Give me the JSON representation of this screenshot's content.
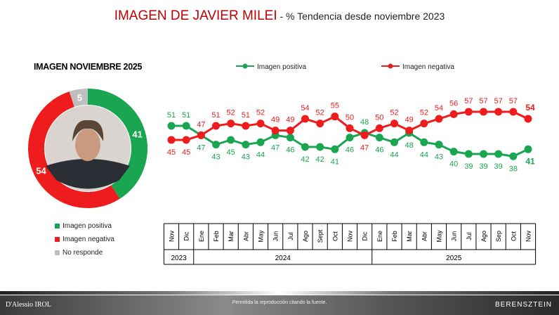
{
  "title": {
    "main": "IMAGEN DE JAVIER MILEI",
    "sub": " - % Tendencia desde noviembre 2023"
  },
  "donut": {
    "title": "IMAGEN NOVIEMBRE 2025",
    "slices": [
      {
        "label": "Imagen positiva",
        "value": 41,
        "color": "#1aa650"
      },
      {
        "label": "Imagen negativa",
        "value": 54,
        "color": "#ee1c1c"
      },
      {
        "label": "No responde",
        "value": 5,
        "color": "#bfbfbf"
      }
    ]
  },
  "chart_data": {
    "type": "line",
    "categories": [
      "Nov",
      "Dic",
      "Ene",
      "Feb",
      "Mar",
      "Abr",
      "May",
      "Jun",
      "Jul",
      "Ago",
      "Sept",
      "Oct",
      "Nov",
      "Dic",
      "Ene",
      "Feb",
      "Mar",
      "Abr",
      "May",
      "Jun",
      "Jul",
      "Ago",
      "Sep",
      "Oct",
      "Nov"
    ],
    "years": [
      {
        "label": "2023",
        "span": 2
      },
      {
        "label": "2024",
        "span": 12
      },
      {
        "label": "2025",
        "span": 11
      }
    ],
    "series": [
      {
        "name": "Imagen positiva",
        "color": "#1aa650",
        "values": [
          51,
          51,
          47,
          43,
          45,
          43,
          44,
          47,
          46,
          42,
          42,
          41,
          46,
          48,
          46,
          44,
          48,
          44,
          43,
          40,
          39,
          39,
          39,
          38,
          41
        ]
      },
      {
        "name": "Imagen negativa",
        "color": "#ee1c1c",
        "values": [
          45,
          45,
          47,
          51,
          52,
          51,
          52,
          49,
          49,
          54,
          52,
          55,
          50,
          47,
          50,
          52,
          49,
          52,
          54,
          56,
          57,
          57,
          57,
          57,
          54
        ]
      }
    ],
    "legend": "top"
  },
  "footer": {
    "left": "D'Alessio IROL",
    "note": "Permitida la reproducción citando la fuente.",
    "right": "BERENSZTEIN"
  }
}
